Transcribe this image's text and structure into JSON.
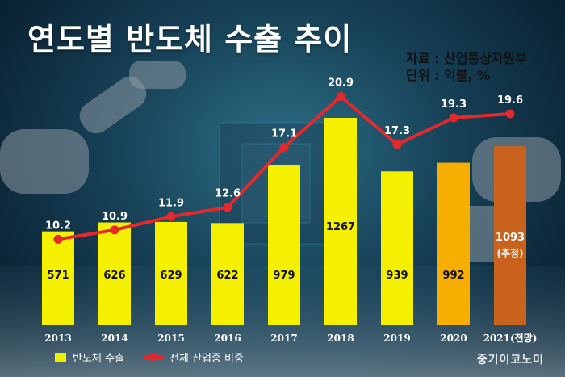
{
  "title": "연도별 반도체 수출 추이",
  "source_line": "자료 : 산업통상자원부",
  "unit_line": "단위 : 억불, %",
  "watermark": "중기이코노미",
  "legend": {
    "bar_label": "반도체 수출",
    "line_label": "전체 산업중 비중"
  },
  "colors": {
    "bar": "#f5f000",
    "bar_2020": "#f6ae00",
    "bar_2021": "#c8621d",
    "line": "#e5282c"
  },
  "chart_data": {
    "type": "bar",
    "categories": [
      "2013",
      "2014",
      "2015",
      "2016",
      "2017",
      "2018",
      "2019",
      "2020",
      "2021(전망)"
    ],
    "series": [
      {
        "name": "반도체 수출",
        "values": [
          571,
          626,
          629,
          622,
          979,
          1267,
          939,
          992,
          1093
        ],
        "value_labels": [
          "571",
          "626",
          "629",
          "622",
          "979",
          "1267",
          "939",
          "992",
          "1093"
        ],
        "extra_label_last": "(추정)"
      },
      {
        "name": "전체 산업중 비중",
        "type": "line",
        "values": [
          10.2,
          10.9,
          11.9,
          12.6,
          17.1,
          20.9,
          17.3,
          19.3,
          19.6
        ],
        "value_labels": [
          "10.2",
          "10.9",
          "11.9",
          "12.6",
          "17.1",
          "20.9",
          "17.3",
          "19.3",
          "19.6"
        ]
      }
    ],
    "xlabel": "",
    "ylabel": "",
    "legend_position": "bottom-left"
  }
}
